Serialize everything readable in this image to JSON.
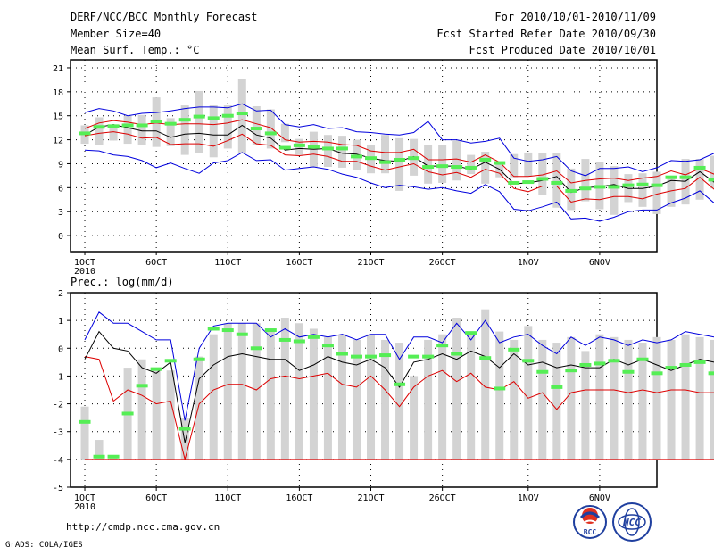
{
  "header": {
    "title": "DERF/NCC/BCC Monthly Forecast",
    "member_size": "Member Size=40",
    "variable": "Mean Surf. Temp.: °C",
    "period": "For 2010/10/01-2010/11/09",
    "refer_date": "Fcst Started Refer Date 2010/09/30",
    "produced_date": "Fcst Produced Date 2010/10/01"
  },
  "footer": {
    "url": "http://cmdp.ncc.cma.gov.cn",
    "grads_credit": "GrADS: COLA/IGES",
    "logo_bcc_text": "BCC",
    "logo_ncc_text": "NCC"
  },
  "colors": {
    "box": "#d3d3d3",
    "median": "#55ee55",
    "upper": "#0000dd",
    "lower": "#0000dd",
    "mean": "#000000",
    "red": "#dd0000"
  },
  "chart_data": [
    {
      "type": "box-line",
      "title": "Mean Surf. Temp.: °C",
      "ylabel": "°C",
      "ylim": [
        -2,
        22
      ],
      "yticks": [
        0,
        3,
        6,
        9,
        12,
        15,
        18,
        21
      ],
      "x_tick_days": [
        0,
        5,
        10,
        15,
        20,
        25,
        31,
        36
      ],
      "x_tick_labels": [
        "1OCT",
        "6OCT",
        "11OCT",
        "16OCT",
        "21OCT",
        "26OCT",
        "1NOV",
        "6NOV"
      ],
      "x_year_label": "2010",
      "day_range": [
        -1,
        40
      ],
      "series": {
        "box_low": [
          11.5,
          11.3,
          11.9,
          11.5,
          11.4,
          11.1,
          11.2,
          10.1,
          10.3,
          9.8,
          10.9,
          10.4,
          11.3,
          10.9,
          11.7,
          10.1,
          8.6,
          8.6,
          8.5,
          8.2,
          7.8,
          7.8,
          5.6,
          7.5,
          6.5,
          6.6,
          6.9,
          7.7,
          6.5,
          7.3,
          7.3,
          7.4,
          5.1,
          3.5,
          3.2,
          4.3,
          3.3,
          2.6,
          4.2,
          3.6,
          2.7,
          3.6,
          3.9,
          4.5,
          5.9,
          4.8,
          4.1
        ],
        "box_high": [
          13.8,
          14.8,
          13.8,
          15.0,
          15.1,
          17.3,
          14.7,
          16.3,
          18.1,
          16.3,
          16.3,
          19.6,
          16.2,
          15.8,
          14.0,
          12.1,
          13.0,
          12.6,
          12.5,
          12.0,
          11.4,
          12.6,
          12.2,
          12.1,
          11.3,
          11.3,
          11.9,
          10.1,
          10.5,
          9.3,
          10.2,
          10.4,
          10.3,
          10.3,
          8.4,
          9.6,
          9.2,
          8.7,
          7.7,
          7.8,
          8.0,
          7.4,
          9.6,
          9.6,
          10.0,
          10.0,
          9.5
        ],
        "median": [
          12.8,
          13.6,
          13.7,
          13.8,
          13.8,
          14.3,
          14.0,
          14.5,
          14.9,
          14.7,
          15.0,
          15.3,
          13.4,
          12.8,
          11.0,
          11.3,
          11.1,
          10.9,
          10.9,
          9.9,
          9.7,
          9.2,
          9.5,
          9.7,
          8.6,
          8.7,
          8.6,
          8.5,
          9.5,
          9.1,
          6.6,
          6.7,
          7.1,
          6.6,
          5.6,
          5.9,
          6.1,
          6.1,
          6.3,
          6.4,
          6.3,
          7.3,
          7.3,
          8.5,
          7.0,
          6.9,
          6.7
        ],
        "upper": [
          15.4,
          15.9,
          15.6,
          15.0,
          15.3,
          15.4,
          15.6,
          15.9,
          16.1,
          16.1,
          16.0,
          16.5,
          15.6,
          15.7,
          13.9,
          13.6,
          13.9,
          13.4,
          13.5,
          13.0,
          12.9,
          12.7,
          12.6,
          12.9,
          14.3,
          12.0,
          12.0,
          11.6,
          11.8,
          12.2,
          9.7,
          9.3,
          9.5,
          9.9,
          8.1,
          7.5,
          8.4,
          8.4,
          8.6,
          8.0,
          8.5,
          9.4,
          9.3,
          9.5,
          10.3,
          8.7,
          8.8
        ],
        "red_high": [
          13.4,
          14.1,
          14.4,
          14.2,
          13.9,
          14.1,
          13.9,
          14.0,
          14.0,
          13.9,
          14.1,
          14.5,
          14.0,
          13.5,
          12.0,
          11.7,
          11.8,
          11.7,
          11.4,
          11.3,
          10.6,
          10.4,
          10.4,
          10.8,
          9.5,
          9.5,
          9.6,
          9.2,
          10.1,
          9.2,
          7.4,
          7.4,
          7.6,
          8.1,
          6.6,
          6.9,
          7.1,
          7.2,
          6.9,
          7.2,
          7.4,
          8.1,
          7.6,
          8.4,
          7.7,
          7.2,
          7.1
        ],
        "mean": [
          12.6,
          13.6,
          13.9,
          13.5,
          13.1,
          13.1,
          12.3,
          12.7,
          12.8,
          12.6,
          12.6,
          13.8,
          12.6,
          12.2,
          10.7,
          10.9,
          10.8,
          10.9,
          10.3,
          10.2,
          9.7,
          9.4,
          9.3,
          9.9,
          8.7,
          8.7,
          8.7,
          8.3,
          9.2,
          8.3,
          6.5,
          6.6,
          6.9,
          7.4,
          5.4,
          6.0,
          6.1,
          6.4,
          5.9,
          5.9,
          6.2,
          6.9,
          6.8,
          8.0,
          6.7,
          6.4,
          6.4
        ],
        "red_low": [
          12.5,
          12.8,
          13.0,
          12.7,
          12.2,
          12.3,
          11.4,
          11.5,
          11.5,
          11.2,
          11.9,
          12.7,
          11.5,
          11.3,
          10.1,
          10.0,
          10.2,
          9.9,
          9.3,
          9.3,
          8.7,
          8.2,
          8.6,
          9.0,
          8.0,
          7.6,
          7.9,
          7.3,
          8.3,
          7.8,
          5.9,
          5.5,
          6.2,
          6.2,
          4.2,
          4.6,
          4.5,
          4.9,
          4.9,
          4.6,
          5.2,
          5.6,
          5.9,
          7.3,
          5.8,
          5.1,
          5.1
        ],
        "lower": [
          10.7,
          10.6,
          10.1,
          9.9,
          9.4,
          8.5,
          9.1,
          8.4,
          7.8,
          9.1,
          9.4,
          10.4,
          9.4,
          9.5,
          8.2,
          8.4,
          8.6,
          8.3,
          7.7,
          7.3,
          6.6,
          6.0,
          6.3,
          6.1,
          5.8,
          6.0,
          5.6,
          5.3,
          6.4,
          5.5,
          3.3,
          3.1,
          3.6,
          4.2,
          2.1,
          2.2,
          1.8,
          2.3,
          3.0,
          3.2,
          3.2,
          4.1,
          4.7,
          5.6,
          4.1,
          3.2,
          3.0
        ]
      }
    },
    {
      "type": "box-line",
      "title": "Prec.: log(mm/d)",
      "ylabel": "log(mm/d)",
      "ylim": [
        -5,
        2
      ],
      "yticks": [
        -5,
        -4,
        -3,
        -2,
        -1,
        0,
        1,
        2
      ],
      "x_tick_days": [
        0,
        5,
        10,
        15,
        20,
        25,
        31,
        36
      ],
      "x_tick_labels": [
        "1OCT",
        "6OCT",
        "11OCT",
        "16OCT",
        "21OCT",
        "26OCT",
        "1NOV",
        "6NOV"
      ],
      "x_year_label": "2010",
      "day_range": [
        -1,
        40
      ],
      "series": {
        "box_low": [
          -4,
          -4,
          -4,
          -4,
          -4,
          -4,
          -4,
          -4,
          -4,
          -4,
          -4,
          -4,
          -4,
          -4,
          -4,
          -4,
          -4,
          -4,
          -4,
          -4,
          -4,
          -4,
          -4,
          -4,
          -4,
          -4,
          -4,
          -4,
          -4,
          -4,
          -4,
          -4,
          -4,
          -4,
          -4,
          -4,
          -4,
          -4,
          -4,
          -4,
          -4,
          -4,
          -4,
          -4,
          -4,
          -4,
          -4
        ],
        "box_high": [
          -2.1,
          -3.3,
          -3.9,
          -0.7,
          -0.4,
          -0.7,
          -0.8,
          -2.5,
          -0.3,
          0.5,
          0.9,
          0.9,
          0.9,
          0.6,
          1.1,
          0.9,
          0.7,
          0.4,
          0.5,
          0.3,
          0.5,
          0.3,
          0.2,
          -1.0,
          0.3,
          0.5,
          1.1,
          0.5,
          1.4,
          0.6,
          0.3,
          0.8,
          0.3,
          0.2,
          0.4,
          -0.1,
          0.5,
          0.4,
          0.3,
          0.2,
          0.4,
          0.3,
          0.5,
          0.4,
          0.3,
          0.1,
          0.0
        ],
        "median": [
          -2.65,
          -3.9,
          -3.9,
          -2.35,
          -1.35,
          -0.75,
          -0.45,
          -2.9,
          -0.4,
          0.7,
          0.65,
          0.5,
          0.0,
          0.65,
          0.3,
          0.25,
          0.4,
          0.1,
          -0.2,
          -0.3,
          -0.3,
          -0.25,
          -1.3,
          -0.3,
          -0.3,
          0.1,
          -0.2,
          0.55,
          -0.35,
          -1.45,
          -0.05,
          -0.45,
          -0.85,
          -1.4,
          -0.8,
          -0.6,
          -0.55,
          -0.45,
          -0.85,
          -0.4,
          -0.9,
          -0.7,
          -0.6,
          -0.5,
          -0.9,
          -0.8,
          -0.9
        ],
        "upper": [
          0.3,
          1.3,
          0.9,
          0.9,
          0.6,
          0.3,
          0.3,
          -2.6,
          0.0,
          0.8,
          0.9,
          0.9,
          0.9,
          0.4,
          0.7,
          0.4,
          0.5,
          0.4,
          0.5,
          0.3,
          0.5,
          0.5,
          -0.4,
          0.4,
          0.4,
          0.2,
          0.9,
          0.3,
          1.0,
          0.2,
          0.4,
          0.5,
          0.1,
          -0.2,
          0.4,
          0.1,
          0.4,
          0.3,
          0.1,
          0.3,
          0.2,
          0.3,
          0.6,
          0.5,
          0.4,
          0.2,
          0.0
        ],
        "mean": [
          -0.4,
          0.6,
          0.0,
          -0.1,
          -0.7,
          -0.9,
          -0.5,
          -3.4,
          -1.1,
          -0.6,
          -0.3,
          -0.2,
          -0.3,
          -0.4,
          -0.4,
          -0.8,
          -0.6,
          -0.3,
          -0.5,
          -0.6,
          -0.4,
          -0.7,
          -1.4,
          -0.5,
          -0.4,
          -0.2,
          -0.4,
          -0.1,
          -0.3,
          -0.7,
          -0.2,
          -0.6,
          -0.5,
          -0.7,
          -0.6,
          -0.7,
          -0.7,
          -0.4,
          -0.6,
          -0.4,
          -0.6,
          -0.8,
          -0.6,
          -0.4,
          -0.5,
          -0.8,
          -0.9
        ],
        "red": [
          -0.3,
          -0.4,
          -1.9,
          -1.5,
          -1.7,
          -2.0,
          -1.9,
          -4.0,
          -2.0,
          -1.5,
          -1.3,
          -1.3,
          -1.5,
          -1.1,
          -1.0,
          -1.1,
          -1.0,
          -0.9,
          -1.3,
          -1.4,
          -1.0,
          -1.5,
          -2.1,
          -1.4,
          -1.0,
          -0.8,
          -1.2,
          -0.9,
          -1.4,
          -1.5,
          -1.2,
          -1.8,
          -1.6,
          -2.2,
          -1.6,
          -1.5,
          -1.5,
          -1.5,
          -1.6,
          -1.5,
          -1.6,
          -1.5,
          -1.5,
          -1.6,
          -1.6,
          -1.6,
          -2.0
        ],
        "floor": [
          -4,
          -4,
          -4,
          -4,
          -4,
          -4,
          -4,
          -4,
          -4,
          -4,
          -4,
          -4,
          -4,
          -4,
          -4,
          -4,
          -4,
          -4,
          -4,
          -4,
          -4,
          -4,
          -4,
          -4,
          -4,
          -4,
          -4,
          -4,
          -4,
          -4,
          -4,
          -4,
          -4,
          -4,
          -4,
          -4,
          -4,
          -4,
          -4,
          -4,
          -4,
          -4,
          -4,
          -4,
          -4,
          -4,
          -4
        ]
      }
    }
  ]
}
